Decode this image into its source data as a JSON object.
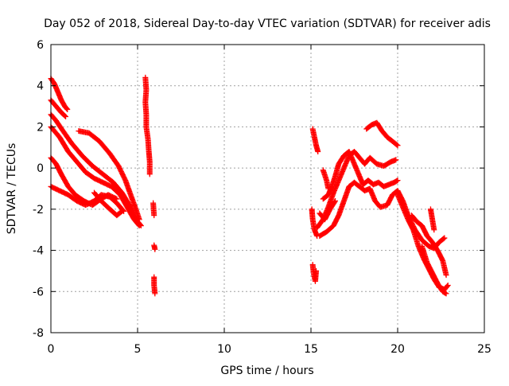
{
  "chart_data": {
    "type": "scatter",
    "title": "Day 052 of 2018, Sidereal Day-to-day VTEC variation (SDTVAR) for receiver adis",
    "xlabel": "GPS time / hours",
    "ylabel": "SDTVAR / TECUs",
    "xlim": [
      0,
      25
    ],
    "ylim": [
      -8,
      6
    ],
    "xticks": [
      0,
      5,
      10,
      15,
      20,
      25
    ],
    "yticks": [
      -8,
      -6,
      -4,
      -2,
      0,
      2,
      4,
      6
    ],
    "xtick_labels": [
      "0",
      "5",
      "10",
      "15",
      "20",
      "25"
    ],
    "ytick_labels": [
      "-8",
      "-6",
      "-4",
      "-2",
      "0",
      "2",
      "4",
      "6"
    ],
    "grid": true,
    "marker": "+",
    "series": [
      {
        "name": "SDTVAR",
        "color": "#ff0000",
        "tracks": [
          [
            [
              0.0,
              4.35
            ],
            [
              0.2,
              4.1
            ],
            [
              0.4,
              3.7
            ],
            [
              0.6,
              3.3
            ],
            [
              0.8,
              3.0
            ],
            [
              0.95,
              2.85
            ]
          ],
          [
            [
              0.0,
              3.3
            ],
            [
              0.3,
              3.0
            ],
            [
              0.6,
              2.7
            ],
            [
              0.85,
              2.5
            ]
          ],
          [
            [
              0.0,
              2.6
            ],
            [
              0.3,
              2.3
            ],
            [
              0.7,
              1.8
            ],
            [
              1.2,
              1.2
            ],
            [
              1.8,
              0.6
            ],
            [
              2.4,
              0.1
            ],
            [
              3.0,
              -0.3
            ],
            [
              3.6,
              -0.7
            ],
            [
              4.1,
              -1.2
            ],
            [
              4.6,
              -1.9
            ],
            [
              5.0,
              -2.6
            ],
            [
              5.2,
              -2.8
            ]
          ],
          [
            [
              0.0,
              2.0
            ],
            [
              0.5,
              1.5
            ],
            [
              1.0,
              0.8
            ],
            [
              1.5,
              0.3
            ],
            [
              2.0,
              -0.2
            ],
            [
              2.5,
              -0.5
            ],
            [
              3.0,
              -0.7
            ],
            [
              3.5,
              -0.9
            ],
            [
              4.0,
              -1.3
            ],
            [
              4.4,
              -1.9
            ],
            [
              4.8,
              -2.5
            ],
            [
              5.1,
              -2.8
            ]
          ],
          [
            [
              1.6,
              1.8
            ],
            [
              2.2,
              1.7
            ],
            [
              2.8,
              1.3
            ],
            [
              3.4,
              0.7
            ],
            [
              3.9,
              0.1
            ],
            [
              4.3,
              -0.6
            ],
            [
              4.6,
              -1.3
            ],
            [
              4.9,
              -2.0
            ],
            [
              5.1,
              -2.5
            ]
          ],
          [
            [
              0.0,
              0.5
            ],
            [
              0.3,
              0.2
            ],
            [
              0.6,
              -0.3
            ],
            [
              1.0,
              -0.9
            ],
            [
              1.4,
              -1.3
            ],
            [
              1.9,
              -1.6
            ],
            [
              2.4,
              -1.8
            ],
            [
              2.9,
              -1.5
            ],
            [
              3.3,
              -1.3
            ],
            [
              3.8,
              -1.5
            ]
          ],
          [
            [
              0.0,
              -0.9
            ],
            [
              0.5,
              -1.1
            ],
            [
              1.0,
              -1.3
            ],
            [
              1.5,
              -1.6
            ],
            [
              2.0,
              -1.8
            ],
            [
              2.5,
              -1.6
            ],
            [
              2.9,
              -1.3
            ],
            [
              3.4,
              -1.4
            ],
            [
              3.8,
              -1.7
            ],
            [
              4.2,
              -2.1
            ]
          ],
          [
            [
              2.5,
              -1.2
            ],
            [
              2.9,
              -1.6
            ],
            [
              3.4,
              -2.0
            ],
            [
              3.8,
              -2.3
            ],
            [
              4.1,
              -2.1
            ]
          ],
          [
            [
              5.45,
              4.4
            ],
            [
              5.5,
              3.8
            ],
            [
              5.45,
              3.2
            ],
            [
              5.5,
              2.6
            ],
            [
              5.5,
              2.0
            ],
            [
              5.6,
              1.4
            ],
            [
              5.65,
              0.8
            ],
            [
              5.7,
              0.3
            ],
            [
              5.7,
              -0.3
            ]
          ],
          [
            [
              5.9,
              -1.7
            ],
            [
              5.95,
              -2.3
            ]
          ],
          [
            [
              5.95,
              -3.75
            ],
            [
              6.0,
              -3.95
            ]
          ],
          [
            [
              5.95,
              -5.3
            ],
            [
              5.95,
              -5.7
            ],
            [
              6.0,
              -6.1
            ]
          ],
          [
            [
              15.1,
              1.9
            ],
            [
              15.2,
              1.5
            ],
            [
              15.3,
              1.1
            ],
            [
              15.4,
              0.8
            ]
          ],
          [
            [
              15.05,
              -2.0
            ],
            [
              15.1,
              -2.5
            ],
            [
              15.2,
              -3.0
            ],
            [
              15.35,
              -3.3
            ]
          ],
          [
            [
              15.1,
              -4.7
            ],
            [
              15.15,
              -5.1
            ],
            [
              15.25,
              -5.5
            ],
            [
              15.3,
              -5.0
            ]
          ],
          [
            [
              15.35,
              -2.9
            ],
            [
              15.7,
              -2.5
            ],
            [
              16.0,
              -1.9
            ],
            [
              16.3,
              -1.2
            ],
            [
              16.6,
              -0.6
            ],
            [
              16.9,
              0.0
            ],
            [
              17.2,
              0.6
            ],
            [
              17.5,
              0.8
            ],
            [
              17.8,
              0.5
            ],
            [
              18.1,
              0.2
            ],
            [
              18.4,
              0.5
            ],
            [
              18.8,
              0.2
            ],
            [
              19.2,
              0.1
            ],
            [
              19.6,
              0.3
            ],
            [
              19.9,
              0.4
            ]
          ],
          [
            [
              15.5,
              -3.3
            ],
            [
              15.9,
              -3.1
            ],
            [
              16.3,
              -2.8
            ],
            [
              16.6,
              -2.3
            ],
            [
              16.9,
              -1.6
            ],
            [
              17.2,
              -0.9
            ],
            [
              17.5,
              -0.7
            ],
            [
              17.8,
              -0.9
            ],
            [
              18.1,
              -1.1
            ],
            [
              18.4,
              -1.0
            ],
            [
              18.7,
              -1.6
            ],
            [
              19.0,
              -1.9
            ],
            [
              19.4,
              -1.8
            ],
            [
              19.7,
              -1.3
            ],
            [
              20.0,
              -1.1
            ],
            [
              20.3,
              -1.6
            ],
            [
              20.6,
              -2.3
            ],
            [
              21.0,
              -3.0
            ],
            [
              21.4,
              -3.5
            ],
            [
              21.8,
              -3.8
            ],
            [
              22.1,
              -3.9
            ],
            [
              22.4,
              -3.6
            ],
            [
              22.7,
              -3.4
            ]
          ],
          [
            [
              15.7,
              -1.5
            ],
            [
              16.0,
              -1.3
            ],
            [
              16.2,
              -0.9
            ],
            [
              16.4,
              -0.4
            ],
            [
              16.6,
              0.2
            ],
            [
              16.9,
              0.6
            ],
            [
              17.2,
              0.8
            ],
            [
              17.5,
              0.2
            ],
            [
              17.8,
              -0.4
            ],
            [
              18.0,
              -0.8
            ],
            [
              18.3,
              -0.6
            ],
            [
              18.6,
              -0.8
            ],
            [
              18.9,
              -0.7
            ],
            [
              19.2,
              -0.9
            ],
            [
              19.5,
              -0.8
            ],
            [
              19.8,
              -0.7
            ],
            [
              20.0,
              -0.6
            ]
          ],
          [
            [
              15.5,
              -2.2
            ],
            [
              15.8,
              -2.5
            ],
            [
              16.1,
              -2.0
            ],
            [
              16.4,
              -1.6
            ]
          ],
          [
            [
              15.7,
              -0.1
            ],
            [
              15.9,
              -0.6
            ],
            [
              16.0,
              -1.0
            ]
          ],
          [
            [
              18.2,
              1.9
            ],
            [
              18.5,
              2.1
            ],
            [
              18.8,
              2.2
            ],
            [
              19.1,
              1.8
            ],
            [
              19.4,
              1.5
            ],
            [
              19.7,
              1.3
            ],
            [
              20.0,
              1.1
            ]
          ],
          [
            [
              20.0,
              -1.3
            ],
            [
              20.3,
              -1.9
            ],
            [
              20.6,
              -2.5
            ],
            [
              20.9,
              -3.0
            ],
            [
              21.2,
              -3.8
            ],
            [
              21.5,
              -4.4
            ],
            [
              21.8,
              -4.9
            ],
            [
              22.1,
              -5.4
            ],
            [
              22.4,
              -5.8
            ],
            [
              22.7,
              -5.9
            ],
            [
              22.9,
              -5.7
            ]
          ],
          [
            [
              20.8,
              -2.3
            ],
            [
              21.1,
              -2.6
            ],
            [
              21.4,
              -2.8
            ],
            [
              21.7,
              -3.3
            ],
            [
              22.0,
              -3.6
            ],
            [
              22.3,
              -4.0
            ],
            [
              22.6,
              -4.5
            ],
            [
              22.8,
              -5.2
            ]
          ],
          [
            [
              21.4,
              -3.8
            ],
            [
              21.7,
              -4.6
            ],
            [
              22.0,
              -5.1
            ],
            [
              22.3,
              -5.6
            ],
            [
              22.6,
              -6.0
            ],
            [
              22.8,
              -6.1
            ]
          ],
          [
            [
              21.9,
              -2.0
            ],
            [
              22.0,
              -2.5
            ],
            [
              22.1,
              -3.0
            ]
          ]
        ]
      }
    ]
  }
}
